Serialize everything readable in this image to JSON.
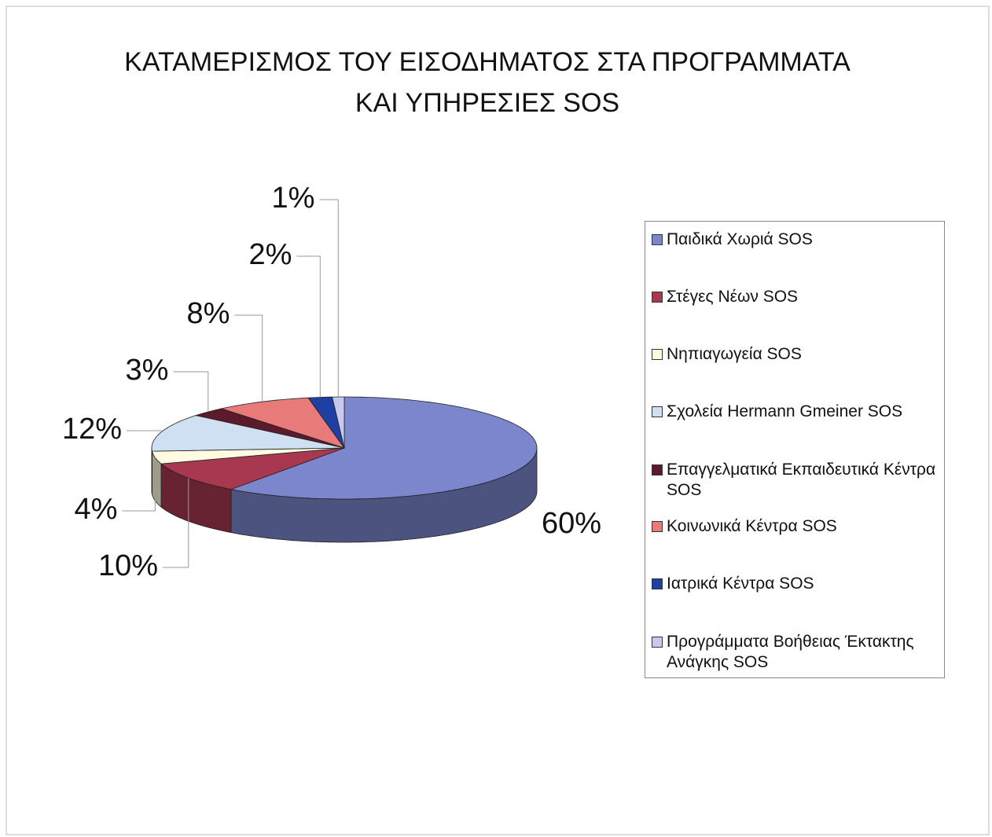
{
  "chart_data": {
    "type": "pie3d",
    "title": [
      "ΚΑΤΑΜΕΡΙΣΜΟΣ ΤΟΥ ΕΙΣΟΔΗΜΑΤΟΣ ΣΤΑ ΠΡΟΓΡΑΜΜΑΤΑ",
      "ΚΑΙ ΥΠΗΡΕΣΙΕΣ SOS"
    ],
    "categories": [
      "Παιδικά Χωριά SOS",
      "Στέγες Νέων SOS",
      "Νηπιαγωγεία SOS",
      "Σχολεία Hermann Gmeiner SOS",
      "Επαγγελματικά Εκπαιδευτικά Κέντρα SOS",
      "Κοινωνικά Κέντρα SOS",
      "Ιατρικά Κέντρα SOS",
      "Προγράμματα Βοήθειας Έκτακτης Ανάγκης SOS"
    ],
    "values": [
      60,
      10,
      4,
      12,
      3,
      8,
      2,
      1
    ],
    "value_labels": [
      "60%",
      "10%",
      "4%",
      "12%",
      "3%",
      "8%",
      "2%",
      "1%"
    ],
    "colors": [
      "#7b86cc",
      "#a8384f",
      "#fffbe0",
      "#cfe0f3",
      "#5c1b2c",
      "#e87a7a",
      "#1f3fa3",
      "#c7c9ef"
    ],
    "legend": "right"
  }
}
